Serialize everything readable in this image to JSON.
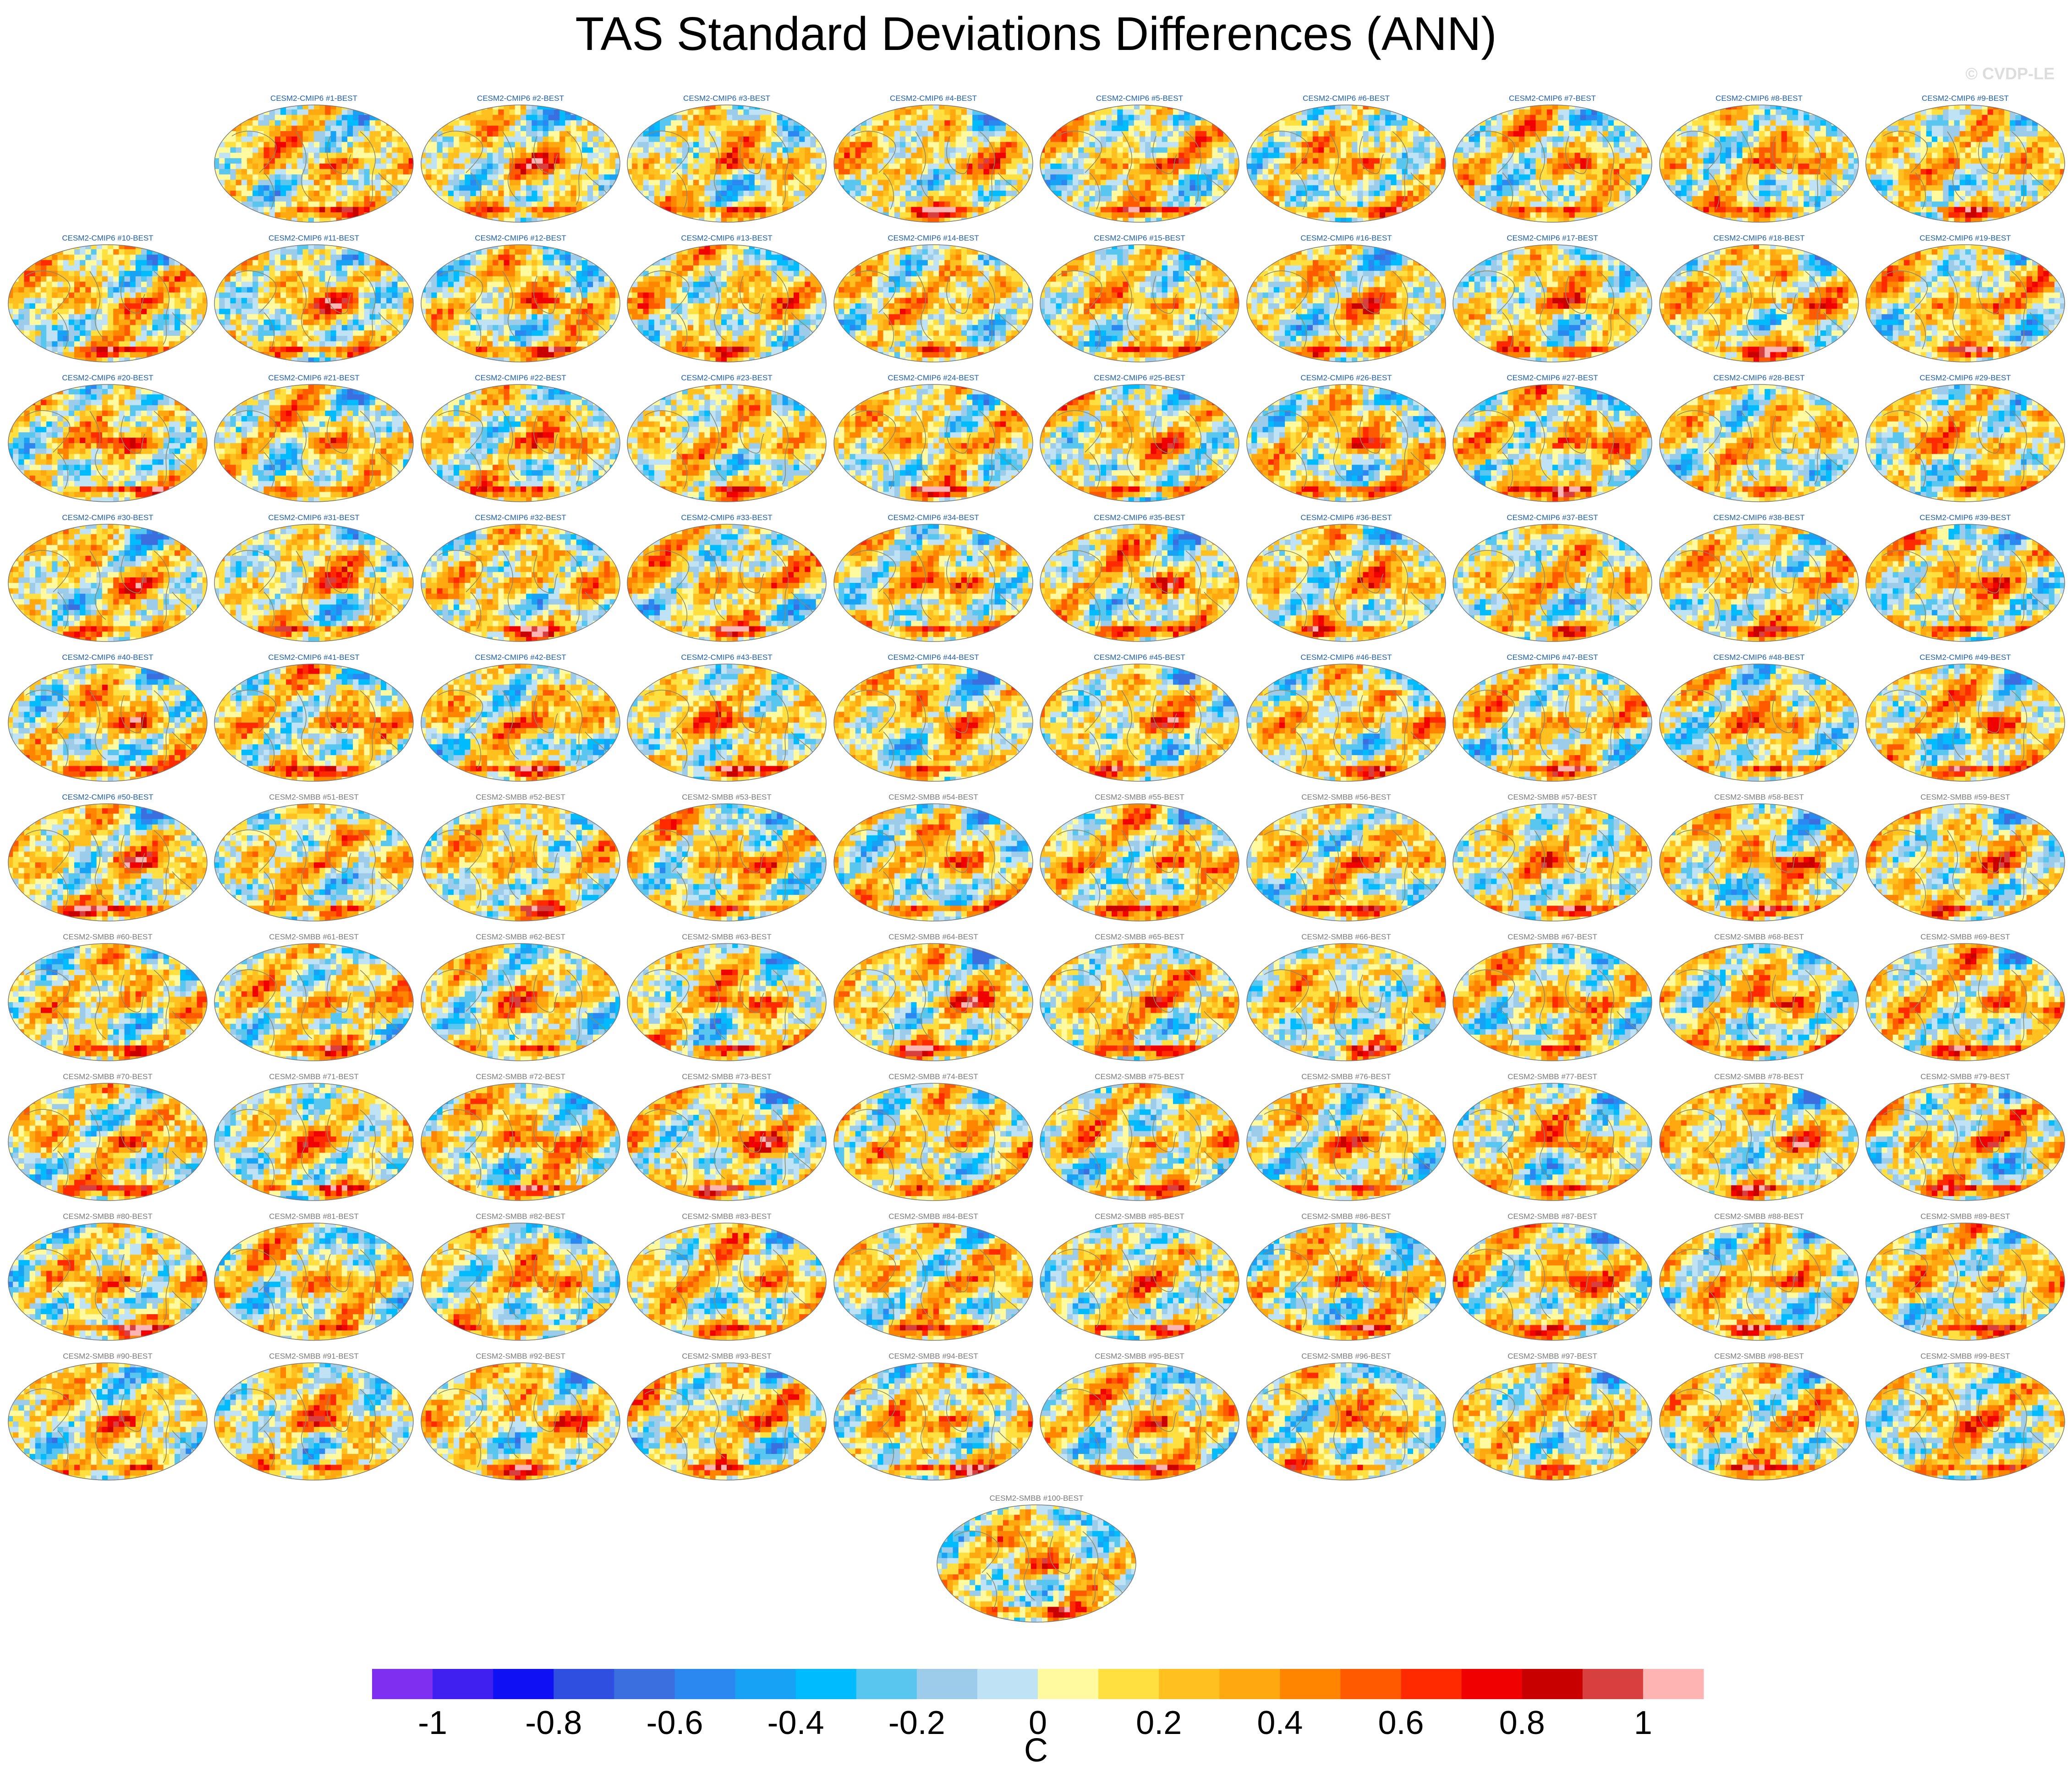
{
  "chart_data": {
    "type": "heatmap",
    "title": "TAS Standard Deviations Differences (ANN)",
    "credit": "© CVDP-LE",
    "projection": "robinson-style global map with coastlines",
    "panel_count": 100,
    "panel_titles_cmip6": [
      "CESM2-CMIP6 #1-BEST",
      "CESM2-CMIP6 #2-BEST",
      "CESM2-CMIP6 #3-BEST",
      "CESM2-CMIP6 #4-BEST",
      "CESM2-CMIP6 #5-BEST",
      "CESM2-CMIP6 #6-BEST",
      "CESM2-CMIP6 #7-BEST",
      "CESM2-CMIP6 #8-BEST",
      "CESM2-CMIP6 #9-BEST",
      "CESM2-CMIP6 #10-BEST",
      "CESM2-CMIP6 #11-BEST",
      "CESM2-CMIP6 #12-BEST",
      "CESM2-CMIP6 #13-BEST",
      "CESM2-CMIP6 #14-BEST",
      "CESM2-CMIP6 #15-BEST",
      "CESM2-CMIP6 #16-BEST",
      "CESM2-CMIP6 #17-BEST",
      "CESM2-CMIP6 #18-BEST",
      "CESM2-CMIP6 #19-BEST",
      "CESM2-CMIP6 #20-BEST",
      "CESM2-CMIP6 #21-BEST",
      "CESM2-CMIP6 #22-BEST",
      "CESM2-CMIP6 #23-BEST",
      "CESM2-CMIP6 #24-BEST",
      "CESM2-CMIP6 #25-BEST",
      "CESM2-CMIP6 #26-BEST",
      "CESM2-CMIP6 #27-BEST",
      "CESM2-CMIP6 #28-BEST",
      "CESM2-CMIP6 #29-BEST",
      "CESM2-CMIP6 #30-BEST",
      "CESM2-CMIP6 #31-BEST",
      "CESM2-CMIP6 #32-BEST",
      "CESM2-CMIP6 #33-BEST",
      "CESM2-CMIP6 #34-BEST",
      "CESM2-CMIP6 #35-BEST",
      "CESM2-CMIP6 #36-BEST",
      "CESM2-CMIP6 #37-BEST",
      "CESM2-CMIP6 #38-BEST",
      "CESM2-CMIP6 #39-BEST",
      "CESM2-CMIP6 #40-BEST",
      "CESM2-CMIP6 #41-BEST",
      "CESM2-CMIP6 #42-BEST",
      "CESM2-CMIP6 #43-BEST",
      "CESM2-CMIP6 #44-BEST",
      "CESM2-CMIP6 #45-BEST",
      "CESM2-CMIP6 #46-BEST",
      "CESM2-CMIP6 #47-BEST",
      "CESM2-CMIP6 #48-BEST",
      "CESM2-CMIP6 #49-BEST",
      "CESM2-CMIP6 #50-BEST"
    ],
    "panel_titles_smbb": [
      "CESM2-SMBB #51-BEST",
      "CESM2-SMBB #52-BEST",
      "CESM2-SMBB #53-BEST",
      "CESM2-SMBB #54-BEST",
      "CESM2-SMBB #55-BEST",
      "CESM2-SMBB #56-BEST",
      "CESM2-SMBB #57-BEST",
      "CESM2-SMBB #58-BEST",
      "CESM2-SMBB #59-BEST",
      "CESM2-SMBB #60-BEST",
      "CESM2-SMBB #61-BEST",
      "CESM2-SMBB #62-BEST",
      "CESM2-SMBB #63-BEST",
      "CESM2-SMBB #64-BEST",
      "CESM2-SMBB #65-BEST",
      "CESM2-SMBB #66-BEST",
      "CESM2-SMBB #67-BEST",
      "CESM2-SMBB #68-BEST",
      "CESM2-SMBB #69-BEST",
      "CESM2-SMBB #70-BEST",
      "CESM2-SMBB #71-BEST",
      "CESM2-SMBB #72-BEST",
      "CESM2-SMBB #73-BEST",
      "CESM2-SMBB #74-BEST",
      "CESM2-SMBB #75-BEST",
      "CESM2-SMBB #76-BEST",
      "CESM2-SMBB #77-BEST",
      "CESM2-SMBB #78-BEST",
      "CESM2-SMBB #79-BEST",
      "CESM2-SMBB #80-BEST",
      "CESM2-SMBB #81-BEST",
      "CESM2-SMBB #82-BEST",
      "CESM2-SMBB #83-BEST",
      "CESM2-SMBB #84-BEST",
      "CESM2-SMBB #85-BEST",
      "CESM2-SMBB #86-BEST",
      "CESM2-SMBB #87-BEST",
      "CESM2-SMBB #88-BEST",
      "CESM2-SMBB #89-BEST",
      "CESM2-SMBB #90-BEST",
      "CESM2-SMBB #91-BEST",
      "CESM2-SMBB #92-BEST",
      "CESM2-SMBB #93-BEST",
      "CESM2-SMBB #94-BEST",
      "CESM2-SMBB #95-BEST",
      "CESM2-SMBB #96-BEST",
      "CESM2-SMBB #97-BEST",
      "CESM2-SMBB #98-BEST",
      "CESM2-SMBB #99-BEST",
      "CESM2-SMBB #100-BEST"
    ],
    "panel_title_colors": {
      "cmip6": "#1f5fa8",
      "smbb": "#7a7a7a"
    },
    "colorbar": {
      "units": "C",
      "levels": [
        -1.1,
        -1,
        -0.9,
        -0.8,
        -0.7,
        -0.6,
        -0.5,
        -0.4,
        -0.3,
        -0.2,
        -0.1,
        0,
        0.1,
        0.2,
        0.3,
        0.4,
        0.5,
        0.6,
        0.7,
        0.8,
        0.9,
        1,
        1.1
      ],
      "colors": [
        "#7f2ff0",
        "#3f20f0",
        "#1010f5",
        "#2f4fe0",
        "#3b6fe0",
        "#2b88f0",
        "#18a2f6",
        "#00bcff",
        "#59c6ef",
        "#9cccea",
        "#bfe3f5",
        "#fffaa0",
        "#ffe040",
        "#ffc020",
        "#ffa810",
        "#ff8500",
        "#ff5a00",
        "#ff2a00",
        "#f00000",
        "#c80000",
        "#d84040",
        "#ffb4b4"
      ],
      "tick_labels": [
        "-1",
        "-0.8",
        "-0.6",
        "-0.4",
        "-0.2",
        "0",
        "0.2",
        "0.4",
        "0.6",
        "0.8",
        "1"
      ],
      "tick_values": [
        -1,
        -0.8,
        -0.6,
        -0.4,
        -0.2,
        0,
        0.2,
        0.4,
        0.6,
        0.8,
        1
      ]
    }
  }
}
